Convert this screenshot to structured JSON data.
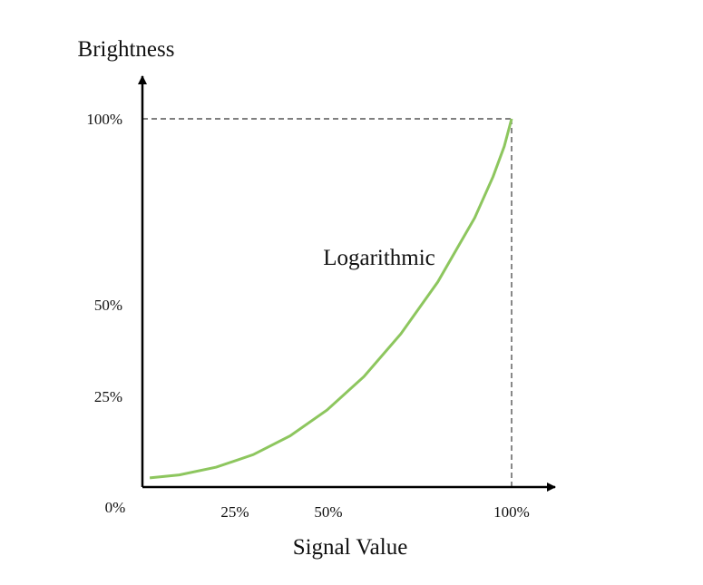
{
  "chart_data": {
    "type": "line",
    "title": "",
    "xlabel": "Signal Value",
    "ylabel": "Brightness",
    "xlim": [
      0,
      100
    ],
    "ylim": [
      0,
      100
    ],
    "grid": false,
    "legend": "none",
    "x_ticks": [
      {
        "value": 25,
        "label": "25%"
      },
      {
        "value": 50,
        "label": "50%"
      },
      {
        "value": 100,
        "label": "100%"
      }
    ],
    "y_ticks": [
      {
        "value": 25,
        "label": "25%"
      },
      {
        "value": 50,
        "label": "50%"
      },
      {
        "value": 100,
        "label": "100%"
      }
    ],
    "origin_label": "0%",
    "annotations": [
      {
        "text": "Logarithmic",
        "x": 60,
        "y": 62
      }
    ],
    "reference_lines": [
      {
        "kind": "horizontal",
        "value": 100,
        "style": "dashed"
      },
      {
        "kind": "vertical",
        "value": 100,
        "style": "dashed"
      }
    ],
    "series": [
      {
        "color": "#8dc65e",
        "points": [
          {
            "x": 2,
            "y": 2.5
          },
          {
            "x": 10,
            "y": 3.3
          },
          {
            "x": 20,
            "y": 5.4
          },
          {
            "x": 30,
            "y": 8.8
          },
          {
            "x": 40,
            "y": 13.9
          },
          {
            "x": 50,
            "y": 20.9
          },
          {
            "x": 60,
            "y": 30.0
          },
          {
            "x": 70,
            "y": 41.6
          },
          {
            "x": 80,
            "y": 55.7
          },
          {
            "x": 90,
            "y": 73.1
          },
          {
            "x": 95,
            "y": 84.3
          },
          {
            "x": 98,
            "y": 92.5
          },
          {
            "x": 100,
            "y": 100
          }
        ]
      }
    ]
  },
  "colors": {
    "axis": "#000000",
    "curve": "#8dc65e",
    "reference": "#555555"
  }
}
